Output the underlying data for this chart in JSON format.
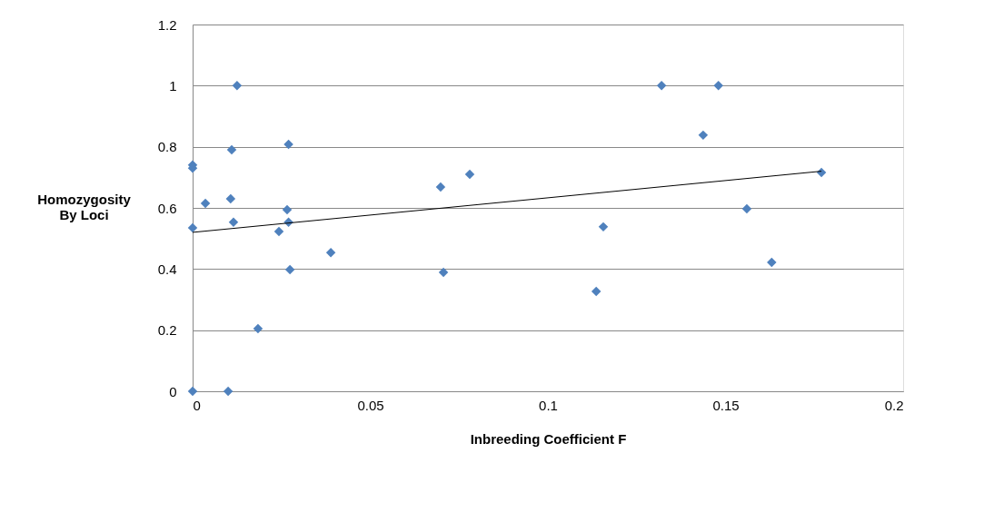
{
  "chart_data": {
    "type": "scatter",
    "xlabel": "Inbreeding Coefficient F",
    "ylabel": "Homozygosity By Loci",
    "xlim": [
      0,
      0.2
    ],
    "xticks": [
      0,
      0.05,
      0.1,
      0.15,
      0.2
    ],
    "ylim": [
      0,
      1.2
    ],
    "yticks": [
      0,
      0.2,
      0.4,
      0.6,
      0.8,
      1,
      1.2
    ],
    "grid": "y",
    "marker": "diamond",
    "series": [
      {
        "color": "#4f81bd",
        "x": [
          0,
          0.01,
          0,
          0,
          0,
          0.0036,
          0.0125,
          0.011,
          0.0107,
          0.0115,
          0.0184,
          0.027,
          0.0266,
          0.027,
          0.0243,
          0.0274,
          0.0389,
          0.0698,
          0.078,
          0.0706,
          0.1136,
          0.1156,
          0.132,
          0.148,
          0.1437,
          0.156,
          0.163,
          0.177
        ],
        "values": [
          0,
          0,
          0.74,
          0.73,
          0.535,
          0.615,
          1.0,
          0.79,
          0.63,
          0.553,
          0.205,
          0.808,
          0.594,
          0.553,
          0.523,
          0.398,
          0.454,
          0.668,
          0.71,
          0.389,
          0.327,
          0.538,
          1.0,
          1.0,
          0.838,
          0.597,
          0.422,
          0.716
        ]
      },
      {
        "type": "line",
        "color": "#000000",
        "marker": "none",
        "line_style": "solid",
        "x": [
          0,
          0.177
        ],
        "values": [
          0.52,
          0.72
        ]
      }
    ]
  }
}
